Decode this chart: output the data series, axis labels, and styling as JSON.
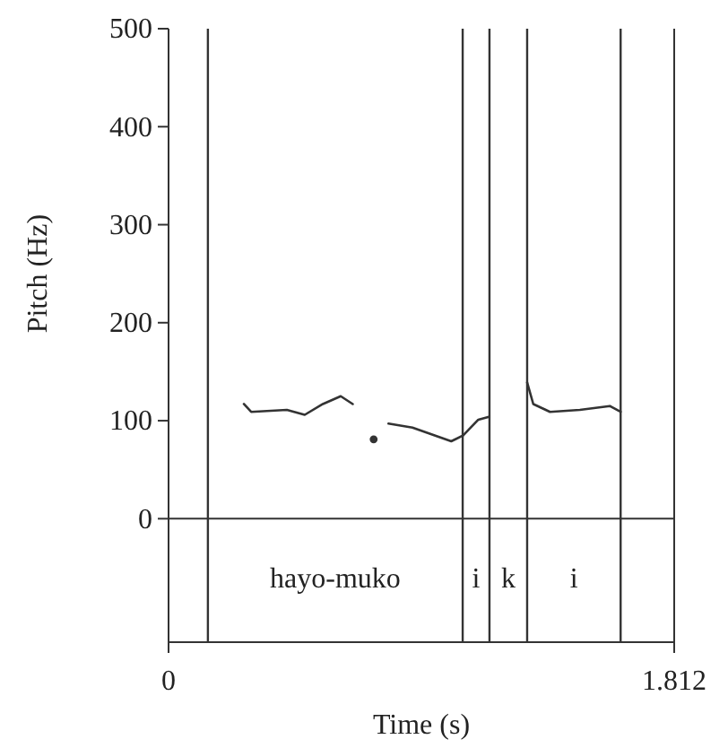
{
  "chart_data": {
    "type": "line",
    "xlabel": "Time (s)",
    "ylabel": "Pitch (Hz)",
    "x": [
      0.27,
      0.296,
      0.424,
      0.488,
      0.553,
      0.617,
      0.66,
      0.7,
      0.735,
      0.76,
      0.788,
      0.874,
      1.013,
      1.056,
      1.11,
      1.148,
      1.2,
      1.285,
      1.307,
      1.367,
      1.474,
      1.581,
      1.62
    ],
    "series": [
      {
        "color": "#333333",
        "values": [
          117,
          109,
          111,
          106,
          117,
          125,
          117,
          null,
          81,
          null,
          97,
          93,
          79,
          85,
          101,
          104,
          null,
          139,
          117,
          109,
          111,
          115,
          109
        ]
      }
    ],
    "xlim": [
      0,
      1.812
    ],
    "xticks": [
      0,
      1.812
    ],
    "ylim": [
      -126,
      500
    ],
    "yticks": [
      0,
      100,
      200,
      300,
      400,
      500
    ],
    "grid": false,
    "marker": "none",
    "line_style": "solid",
    "ref_lines": [
      {
        "axis": "y",
        "value": 0
      },
      {
        "axis": "x",
        "value": 0.141
      },
      {
        "axis": "x",
        "value": 1.054
      },
      {
        "axis": "x",
        "value": 1.15
      },
      {
        "axis": "x",
        "value": 1.285
      },
      {
        "axis": "x",
        "value": 1.62
      }
    ],
    "annotations": [
      "hayo-muko",
      "i",
      "k",
      "i"
    ]
  }
}
